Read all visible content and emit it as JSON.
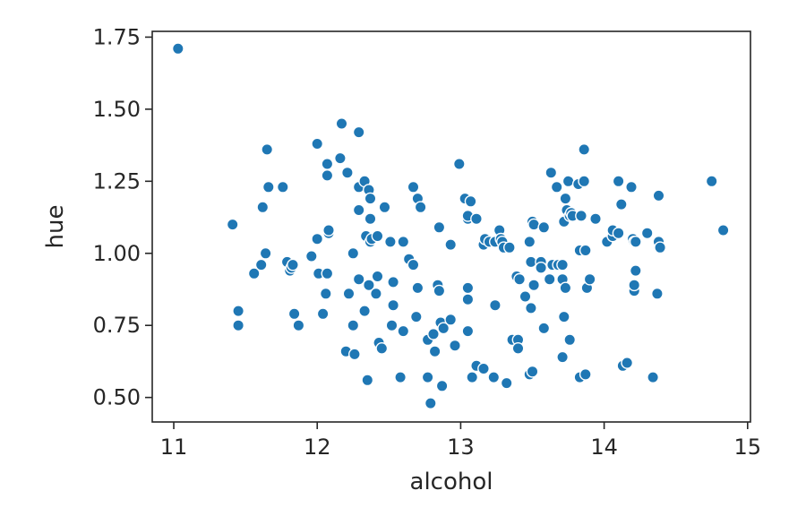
{
  "chart_data": {
    "type": "scatter",
    "xlabel": "alcohol",
    "ylabel": "hue",
    "xlim": [
      10.85,
      15.02
    ],
    "ylim": [
      0.415,
      1.77
    ],
    "xticks": [
      11,
      12,
      13,
      14,
      15
    ],
    "xtick_labels": [
      "11",
      "12",
      "13",
      "14",
      "15"
    ],
    "yticks": [
      0.5,
      0.75,
      1.0,
      1.25,
      1.5,
      1.75
    ],
    "ytick_labels": [
      "0.50",
      "0.75",
      "1.00",
      "1.25",
      "1.50",
      "1.75"
    ],
    "grid": false,
    "marker_color": "#1f77b4",
    "points": [
      [
        11.03,
        1.71
      ],
      [
        11.41,
        1.1
      ],
      [
        11.45,
        0.8
      ],
      [
        11.45,
        0.75
      ],
      [
        11.56,
        0.93
      ],
      [
        11.61,
        0.96
      ],
      [
        11.62,
        1.16
      ],
      [
        11.64,
        1.0
      ],
      [
        11.65,
        1.36
      ],
      [
        11.66,
        1.23
      ],
      [
        11.76,
        1.23
      ],
      [
        11.79,
        0.97
      ],
      [
        11.81,
        0.94
      ],
      [
        11.82,
        0.95
      ],
      [
        11.83,
        0.96
      ],
      [
        11.84,
        0.79
      ],
      [
        11.87,
        0.75
      ],
      [
        11.96,
        0.99
      ],
      [
        12.0,
        1.38
      ],
      [
        12.0,
        1.05
      ],
      [
        12.01,
        0.93
      ],
      [
        12.04,
        0.79
      ],
      [
        12.06,
        0.86
      ],
      [
        12.07,
        0.93
      ],
      [
        12.07,
        1.31
      ],
      [
        12.07,
        1.27
      ],
      [
        12.08,
        1.07
      ],
      [
        12.08,
        1.08
      ],
      [
        12.16,
        1.33
      ],
      [
        12.17,
        1.45
      ],
      [
        12.2,
        0.66
      ],
      [
        12.21,
        1.28
      ],
      [
        12.22,
        0.86
      ],
      [
        12.25,
        1.0
      ],
      [
        12.25,
        0.75
      ],
      [
        12.26,
        0.65
      ],
      [
        12.29,
        1.23
      ],
      [
        12.29,
        0.91
      ],
      [
        12.29,
        1.15
      ],
      [
        12.29,
        1.42
      ],
      [
        12.33,
        1.25
      ],
      [
        12.33,
        0.8
      ],
      [
        12.34,
        1.06
      ],
      [
        12.35,
        0.56
      ],
      [
        12.36,
        1.22
      ],
      [
        12.36,
        0.89
      ],
      [
        12.37,
        1.04
      ],
      [
        12.37,
        1.12
      ],
      [
        12.37,
        1.19
      ],
      [
        12.38,
        1.05
      ],
      [
        12.41,
        0.86
      ],
      [
        12.42,
        0.92
      ],
      [
        12.42,
        1.06
      ],
      [
        12.43,
        0.69
      ],
      [
        12.45,
        0.67
      ],
      [
        12.47,
        1.16
      ],
      [
        12.51,
        1.04
      ],
      [
        12.52,
        0.75
      ],
      [
        12.53,
        0.9
      ],
      [
        12.53,
        0.82
      ],
      [
        12.58,
        0.57
      ],
      [
        12.6,
        0.73
      ],
      [
        12.6,
        1.04
      ],
      [
        12.64,
        0.98
      ],
      [
        12.67,
        0.96
      ],
      [
        12.67,
        1.23
      ],
      [
        12.69,
        0.78
      ],
      [
        12.7,
        1.19
      ],
      [
        12.7,
        0.88
      ],
      [
        12.72,
        1.16
      ],
      [
        12.77,
        0.7
      ],
      [
        12.77,
        0.57
      ],
      [
        12.79,
        0.48
      ],
      [
        12.81,
        0.72
      ],
      [
        12.82,
        0.66
      ],
      [
        12.84,
        0.89
      ],
      [
        12.85,
        0.87
      ],
      [
        12.85,
        1.09
      ],
      [
        12.86,
        0.76
      ],
      [
        12.87,
        0.54
      ],
      [
        12.88,
        0.74
      ],
      [
        12.93,
        0.77
      ],
      [
        12.93,
        1.03
      ],
      [
        12.96,
        0.68
      ],
      [
        12.99,
        1.31
      ],
      [
        13.03,
        1.19
      ],
      [
        13.05,
        0.88
      ],
      [
        13.05,
        0.84
      ],
      [
        13.05,
        1.12
      ],
      [
        13.05,
        0.73
      ],
      [
        13.05,
        1.13
      ],
      [
        13.07,
        1.18
      ],
      [
        13.08,
        0.57
      ],
      [
        13.11,
        1.12
      ],
      [
        13.11,
        0.61
      ],
      [
        13.16,
        1.03
      ],
      [
        13.16,
        0.6
      ],
      [
        13.17,
        1.05
      ],
      [
        13.2,
        1.04
      ],
      [
        13.23,
        0.57
      ],
      [
        13.24,
        1.04
      ],
      [
        13.24,
        0.82
      ],
      [
        13.27,
        1.08
      ],
      [
        13.28,
        1.05
      ],
      [
        13.29,
        1.04
      ],
      [
        13.3,
        1.02
      ],
      [
        13.32,
        0.55
      ],
      [
        13.34,
        1.02
      ],
      [
        13.36,
        0.7
      ],
      [
        13.39,
        0.92
      ],
      [
        13.4,
        0.7
      ],
      [
        13.4,
        0.67
      ],
      [
        13.41,
        0.91
      ],
      [
        13.45,
        0.85
      ],
      [
        13.48,
        0.58
      ],
      [
        13.48,
        1.04
      ],
      [
        13.49,
        0.81
      ],
      [
        13.49,
        0.97
      ],
      [
        13.5,
        1.11
      ],
      [
        13.5,
        0.59
      ],
      [
        13.51,
        1.1
      ],
      [
        13.51,
        0.89
      ],
      [
        13.56,
        0.97
      ],
      [
        13.56,
        0.95
      ],
      [
        13.58,
        1.09
      ],
      [
        13.58,
        0.74
      ],
      [
        13.62,
        0.91
      ],
      [
        13.63,
        1.28
      ],
      [
        13.64,
        0.96
      ],
      [
        13.67,
        1.23
      ],
      [
        13.68,
        0.96
      ],
      [
        13.71,
        0.96
      ],
      [
        13.71,
        0.91
      ],
      [
        13.71,
        0.64
      ],
      [
        13.72,
        0.78
      ],
      [
        13.72,
        1.11
      ],
      [
        13.73,
        0.88
      ],
      [
        13.73,
        1.19
      ],
      [
        13.74,
        1.15
      ],
      [
        13.75,
        1.25
      ],
      [
        13.76,
        0.7
      ],
      [
        13.76,
        1.13
      ],
      [
        13.77,
        1.14
      ],
      [
        13.78,
        1.13
      ],
      [
        13.82,
        1.24
      ],
      [
        13.83,
        0.57
      ],
      [
        13.83,
        1.01
      ],
      [
        13.84,
        1.13
      ],
      [
        13.86,
        1.25
      ],
      [
        13.86,
        1.36
      ],
      [
        13.87,
        1.01
      ],
      [
        13.87,
        0.58
      ],
      [
        13.88,
        0.88
      ],
      [
        13.9,
        0.91
      ],
      [
        13.94,
        1.12
      ],
      [
        14.02,
        1.04
      ],
      [
        14.06,
        1.06
      ],
      [
        14.06,
        1.08
      ],
      [
        14.1,
        1.25
      ],
      [
        14.1,
        1.07
      ],
      [
        14.12,
        1.17
      ],
      [
        14.13,
        0.61
      ],
      [
        14.16,
        0.62
      ],
      [
        14.19,
        1.23
      ],
      [
        14.2,
        1.05
      ],
      [
        14.21,
        1.04
      ],
      [
        14.21,
        0.87
      ],
      [
        14.21,
        0.89
      ],
      [
        14.22,
        0.94
      ],
      [
        14.22,
        1.04
      ],
      [
        14.3,
        1.07
      ],
      [
        14.34,
        0.57
      ],
      [
        14.37,
        0.86
      ],
      [
        14.38,
        1.2
      ],
      [
        14.38,
        1.04
      ],
      [
        14.39,
        1.02
      ],
      [
        14.75,
        1.25
      ],
      [
        14.83,
        1.08
      ]
    ]
  }
}
